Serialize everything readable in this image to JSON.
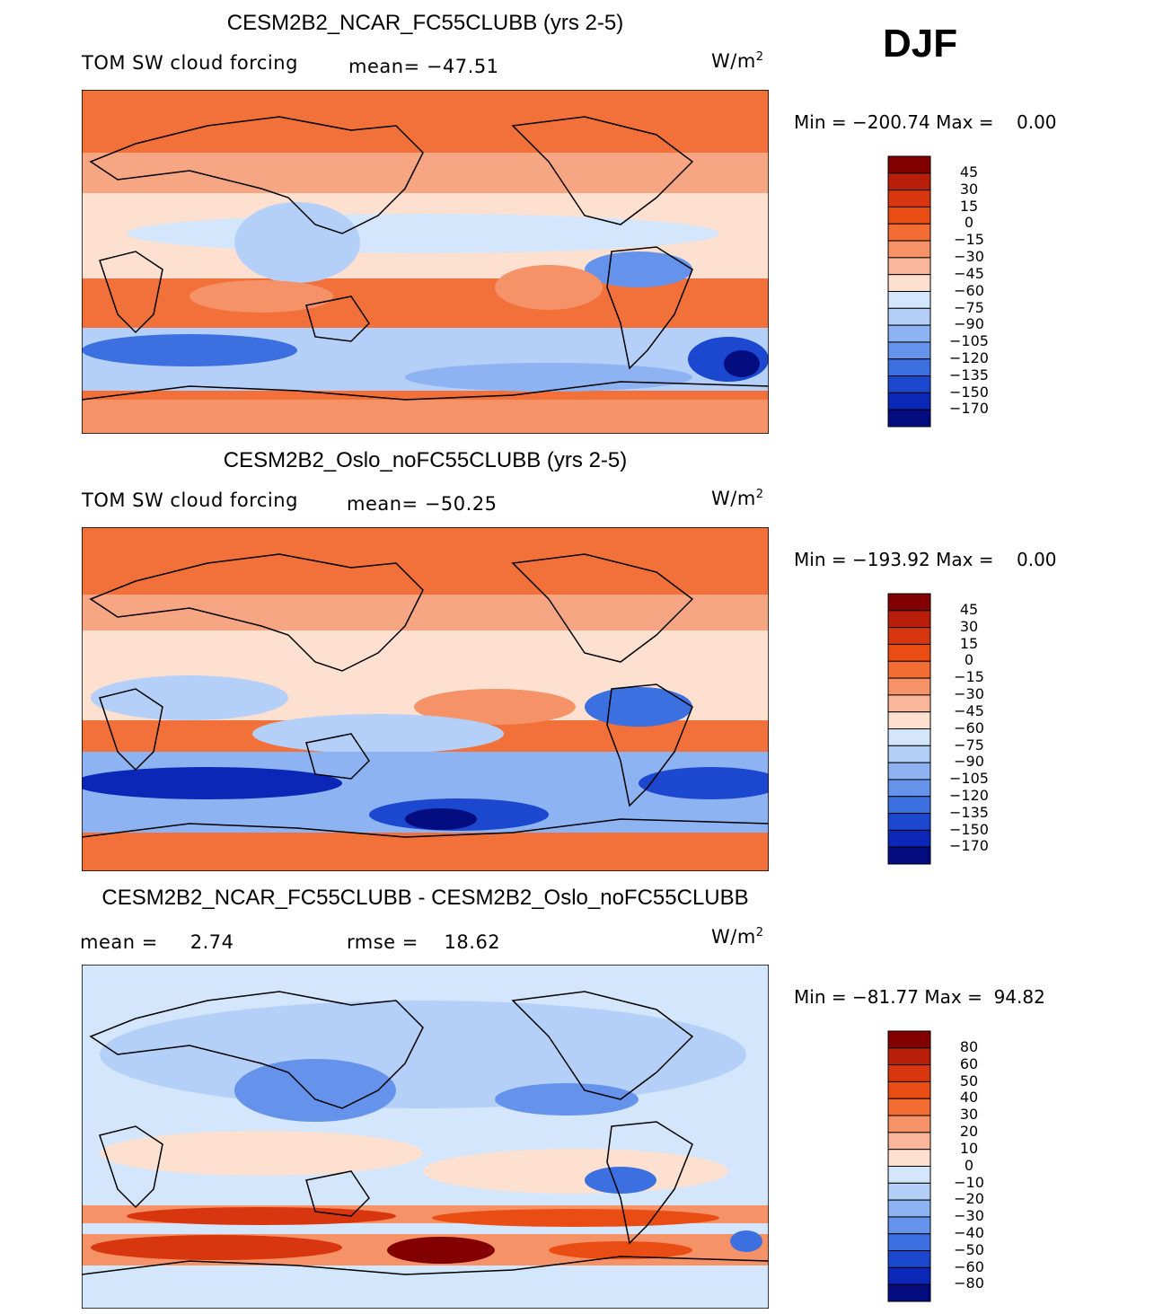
{
  "season": "DJF",
  "panels": [
    {
      "title": "CESM2B2_NCAR_FC55CLUBB (yrs 2-5)",
      "left_label": "TOM SW cloud forcing",
      "mid_label": "mean= −47.51",
      "units_base": "W/m",
      "units_exp": "2",
      "min_label": "Min",
      "min_value": "−200.74",
      "max_label": "Max",
      "max_value": "0.00",
      "colorbar": {
        "labels": [
          "45",
          "30",
          "15",
          "0",
          "−15",
          "−30",
          "−45",
          "−60",
          "−75",
          "−90",
          "−105",
          "−120",
          "−135",
          "−150",
          "−170"
        ],
        "colors": [
          "#820000",
          "#b81e0a",
          "#d8360e",
          "#ea4d14",
          "#f26c34",
          "#f69268",
          "#f9b69a",
          "#fde0d0",
          "#d4e6fb",
          "#b4d0f8",
          "#8db3f3",
          "#6593ec",
          "#3c6fe0",
          "#1b48cf",
          "#0a27b8",
          "#030d80"
        ]
      }
    },
    {
      "title": "CESM2B2_Oslo_noFC55CLUBB (yrs 2-5)",
      "left_label": "TOM SW cloud forcing",
      "mid_label": "mean= −50.25",
      "units_base": "W/m",
      "units_exp": "2",
      "min_label": "Min",
      "min_value": "−193.92",
      "max_label": "Max",
      "max_value": "0.00",
      "colorbar": {
        "labels": [
          "45",
          "30",
          "15",
          "0",
          "−15",
          "−30",
          "−45",
          "−60",
          "−75",
          "−90",
          "−105",
          "−120",
          "−135",
          "−150",
          "−170"
        ],
        "colors": [
          "#820000",
          "#b81e0a",
          "#d8360e",
          "#ea4d14",
          "#f26c34",
          "#f69268",
          "#f9b69a",
          "#fde0d0",
          "#d4e6fb",
          "#b4d0f8",
          "#8db3f3",
          "#6593ec",
          "#3c6fe0",
          "#1b48cf",
          "#0a27b8",
          "#030d80"
        ]
      }
    },
    {
      "title": "CESM2B2_NCAR_FC55CLUBB - CESM2B2_Oslo_noFC55CLUBB",
      "left_label": "mean =     2.74",
      "mid_label": "rmse =    18.62",
      "units_base": "W/m",
      "units_exp": "2",
      "min_label": "Min",
      "min_value": "−81.77",
      "max_label": "Max",
      "max_value": "94.82",
      "colorbar": {
        "labels": [
          "80",
          "60",
          "50",
          "40",
          "30",
          "20",
          "10",
          "0",
          "−10",
          "−20",
          "−30",
          "−40",
          "−50",
          "−60",
          "−80"
        ],
        "colors": [
          "#820000",
          "#b81e0a",
          "#d8360e",
          "#ea4d14",
          "#f26c34",
          "#f69268",
          "#f9b69a",
          "#fde0d0",
          "#d4e6fb",
          "#b4d0f8",
          "#8db3f3",
          "#6593ec",
          "#3c6fe0",
          "#1b48cf",
          "#0a27b8",
          "#030d80"
        ]
      }
    }
  ]
}
